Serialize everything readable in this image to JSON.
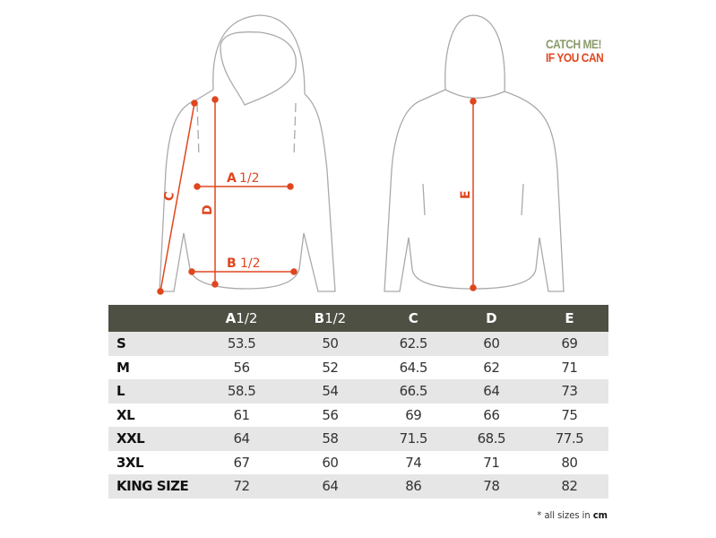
{
  "logo": {
    "line1": "CATCH ME!",
    "line2": "IF YOU CAN"
  },
  "diagram": {
    "labels": {
      "a": "A",
      "a_frac": "1/2",
      "b": "B",
      "b_frac": "1/2",
      "c": "C",
      "d": "D",
      "e": "E"
    },
    "accent": "#e0461e"
  },
  "table": {
    "headers": [
      {
        "letter": "A",
        "frac": "1/2"
      },
      {
        "letter": "B",
        "frac": "1/2"
      },
      {
        "letter": "C",
        "frac": ""
      },
      {
        "letter": "D",
        "frac": ""
      },
      {
        "letter": "E",
        "frac": ""
      }
    ],
    "rows": [
      {
        "size": "S",
        "values": [
          "53.5",
          "50",
          "62.5",
          "60",
          "69"
        ]
      },
      {
        "size": "M",
        "values": [
          "56",
          "52",
          "64.5",
          "62",
          "71"
        ]
      },
      {
        "size": "L",
        "values": [
          "58.5",
          "54",
          "66.5",
          "64",
          "73"
        ]
      },
      {
        "size": "XL",
        "values": [
          "61",
          "56",
          "69",
          "66",
          "75"
        ]
      },
      {
        "size": "XXL",
        "values": [
          "64",
          "58",
          "71.5",
          "68.5",
          "77.5"
        ]
      },
      {
        "size": "3XL",
        "values": [
          "67",
          "60",
          "74",
          "71",
          "80"
        ]
      },
      {
        "size": "KING SIZE",
        "values": [
          "72",
          "64",
          "86",
          "78",
          "82"
        ]
      }
    ],
    "header_color": "#4d5043"
  },
  "note": {
    "text": "* all sizes in ",
    "unit": "cm"
  }
}
